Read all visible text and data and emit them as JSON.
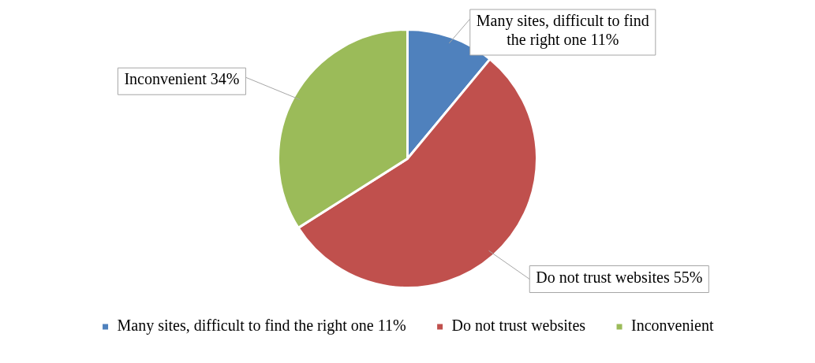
{
  "chart_data": {
    "type": "pie",
    "categories": [
      "Many sites, difficult to find the right one 11%",
      "Do not trust websites",
      "Inconvenient"
    ],
    "values": [
      11,
      55,
      34
    ],
    "colors": [
      "#4f81bd",
      "#c0504d",
      "#9bbb59"
    ],
    "value_labels": [
      "Many sites, difficult to find the right one 11%",
      "Do not trust websites 55%",
      "Inconvenient 34%"
    ],
    "legend": "bottom"
  }
}
